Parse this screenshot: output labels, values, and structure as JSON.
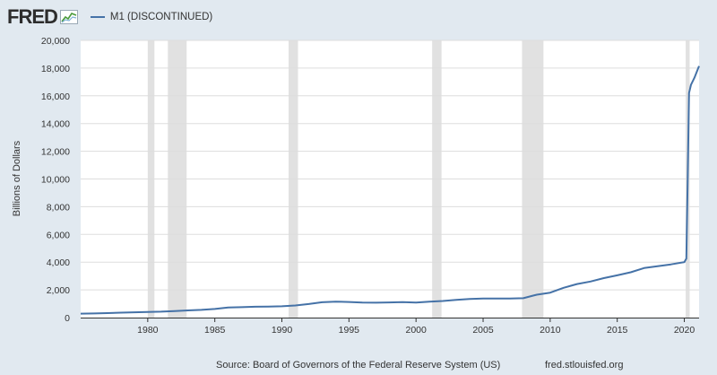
{
  "header": {
    "logo_text": "FRED",
    "series_label": "M1 (DISCONTINUED)"
  },
  "footer": {
    "source": "Source: Board of Governors of the Federal Reserve System (US)",
    "url": "fred.stlouisfed.org"
  },
  "colors": {
    "background": "#e1e9f0",
    "plot_background": "#ffffff",
    "series": "#4572a7",
    "recession": "#e1e1e1",
    "grid": "#dddddd"
  },
  "chart_data": {
    "type": "line",
    "title": "M1 (DISCONTINUED)",
    "ylabel": "Billions of Dollars",
    "xlabel": "",
    "xlim": [
      1975.0,
      2021.1
    ],
    "ylim": [
      0,
      20000
    ],
    "x_ticks": [
      1980,
      1985,
      1990,
      1995,
      2000,
      2005,
      2010,
      2015,
      2020
    ],
    "y_ticks": [
      0,
      2000,
      4000,
      6000,
      8000,
      10000,
      12000,
      14000,
      16000,
      18000,
      20000
    ],
    "y_tick_labels": [
      "0",
      "2,000",
      "4,000",
      "6,000",
      "8,000",
      "10,000",
      "12,000",
      "14,000",
      "16,000",
      "18,000",
      "20,000"
    ],
    "grid": true,
    "legend": "top-left",
    "recessions": [
      [
        1980.0,
        1980.5
      ],
      [
        1981.5,
        1982.9
      ],
      [
        1990.5,
        1991.2
      ],
      [
        2001.2,
        2001.9
      ],
      [
        2007.9,
        2009.5
      ],
      [
        2020.1,
        2020.4
      ]
    ],
    "series": [
      {
        "name": "M1 (DISCONTINUED)",
        "x": [
          1975.0,
          1976,
          1977,
          1978,
          1979,
          1980,
          1981,
          1982,
          1983,
          1984,
          1985,
          1986,
          1987,
          1988,
          1989,
          1990,
          1991,
          1992,
          1993,
          1994,
          1995,
          1996,
          1997,
          1998,
          1999,
          2000,
          2001,
          2002,
          2003,
          2004,
          2005,
          2006,
          2007,
          2008,
          2008.7,
          2009,
          2010,
          2011,
          2012,
          2013,
          2014,
          2015,
          2016,
          2017,
          2018,
          2019,
          2020.0,
          2020.15,
          2020.25,
          2020.35,
          2020.5,
          2020.75,
          2021.0,
          2021.1
        ],
        "values": [
          285,
          300,
          325,
          355,
          385,
          405,
          430,
          470,
          520,
          555,
          620,
          725,
          750,
          785,
          790,
          815,
          875,
          980,
          1105,
          1150,
          1125,
          1080,
          1075,
          1095,
          1120,
          1085,
          1150,
          1195,
          1275,
          1345,
          1370,
          1375,
          1370,
          1400,
          1580,
          1650,
          1800,
          2150,
          2420,
          2600,
          2850,
          3050,
          3270,
          3570,
          3700,
          3840,
          4000,
          4250,
          10000,
          16200,
          16800,
          17300,
          17900,
          18150
        ]
      }
    ]
  }
}
